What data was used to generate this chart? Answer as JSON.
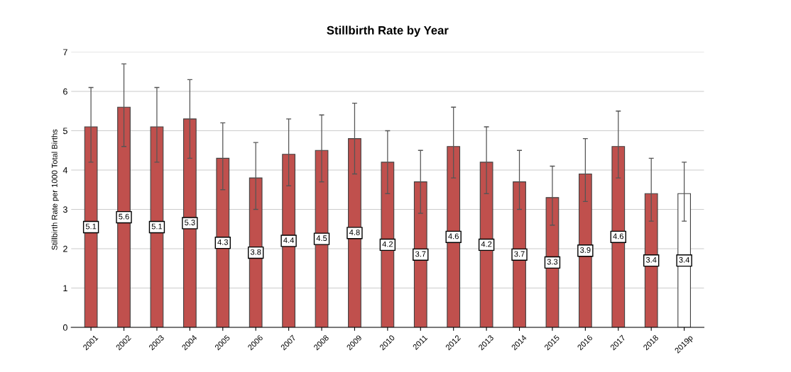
{
  "chart_data": {
    "type": "bar",
    "title": "Stillbirth Rate by Year",
    "ylabel": "Stillbirth Rate per 1000 Total Births",
    "categories": [
      "2001",
      "2002",
      "2003",
      "2004",
      "2005",
      "2006",
      "2007",
      "2008",
      "2009",
      "2010",
      "2011",
      "2012",
      "2013",
      "2014",
      "2015",
      "2016",
      "2017",
      "2018",
      "2019p"
    ],
    "values": [
      5.1,
      5.6,
      5.1,
      5.3,
      4.3,
      3.8,
      4.4,
      4.5,
      4.8,
      4.2,
      3.7,
      4.6,
      4.2,
      3.7,
      3.3,
      3.9,
      4.6,
      3.4,
      3.4
    ],
    "colors": [
      "#c0504d",
      "#c0504d",
      "#c0504d",
      "#c0504d",
      "#c0504d",
      "#c0504d",
      "#c0504d",
      "#c0504d",
      "#c0504d",
      "#c0504d",
      "#c0504d",
      "#c0504d",
      "#c0504d",
      "#c0504d",
      "#c0504d",
      "#c0504d",
      "#c0504d",
      "#c0504d",
      "#ffffff"
    ],
    "errors": [
      [
        4.2,
        6.1
      ],
      [
        4.6,
        6.7
      ],
      [
        4.2,
        6.1
      ],
      [
        4.3,
        6.3
      ],
      [
        3.5,
        5.2
      ],
      [
        3.0,
        4.7
      ],
      [
        3.6,
        5.3
      ],
      [
        3.7,
        5.4
      ],
      [
        3.9,
        5.7
      ],
      [
        3.4,
        5.0
      ],
      [
        2.9,
        4.5
      ],
      [
        3.8,
        5.6
      ],
      [
        3.4,
        5.1
      ],
      [
        3.0,
        4.5
      ],
      [
        2.6,
        4.1
      ],
      [
        3.2,
        4.8
      ],
      [
        3.8,
        5.5
      ],
      [
        2.7,
        4.3
      ],
      [
        2.7,
        4.2
      ]
    ],
    "data_labels": true,
    "ylim": [
      0,
      7
    ],
    "yticks": [
      0,
      1,
      2,
      3,
      4,
      5,
      6,
      7
    ],
    "grid": "y",
    "legend": false
  }
}
